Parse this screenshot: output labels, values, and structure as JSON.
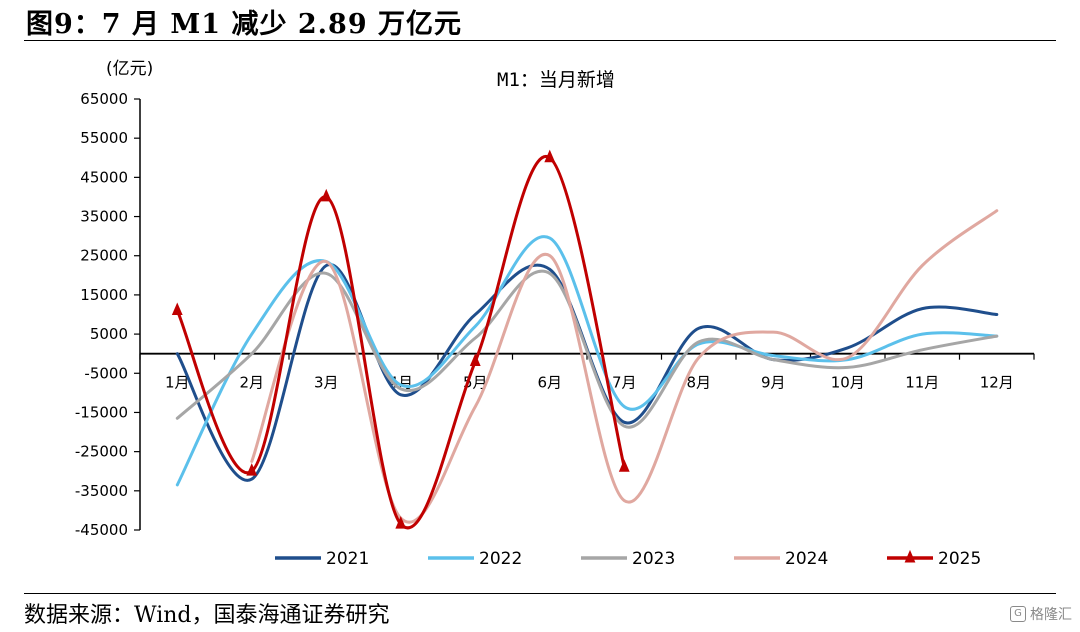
{
  "figure_title": "图9：7 月 M1 减少 2.89 万亿元",
  "source": "数据来源：Wind，国泰海通证券研究",
  "watermark": "格隆汇",
  "watermark_logo": "G",
  "chart_data": {
    "type": "line",
    "title": "M1：当月新增",
    "ylabel": "(亿元)",
    "ylim": [
      -45000,
      65000
    ],
    "yticks": [
      65000,
      55000,
      45000,
      35000,
      25000,
      15000,
      5000,
      -5000,
      -15000,
      -25000,
      -35000,
      -45000
    ],
    "ytick_labels": [
      "65000",
      "55000",
      "45000",
      "35000",
      "25000",
      "15000",
      "5000",
      "-5000",
      "-15000",
      "-25000",
      "-35000",
      "-45000"
    ],
    "categories": [
      "1月",
      "2月",
      "3月",
      "4月",
      "5月",
      "6月",
      "7月",
      "8月",
      "9月",
      "10月",
      "11月",
      "12月"
    ],
    "legend_position": "bottom",
    "grid": false,
    "series": [
      {
        "name": "2021",
        "color": "#1f4e8c",
        "marker": "none",
        "values": [
          0,
          -32000,
          22500,
          -10500,
          10000,
          21500,
          -17500,
          6500,
          -1500,
          1500,
          11500,
          10000
        ]
      },
      {
        "name": "2022",
        "color": "#5bc0eb",
        "marker": "none",
        "values": [
          -33500,
          5000,
          23500,
          -8000,
          7000,
          29500,
          -13500,
          2500,
          -500,
          -1500,
          5000,
          4500
        ]
      },
      {
        "name": "2023",
        "color": "#a6a6a6",
        "marker": "none",
        "values": [
          -16500,
          0,
          20500,
          -9000,
          4000,
          20500,
          -18500,
          3000,
          -1500,
          -3500,
          1000,
          4500
        ]
      },
      {
        "name": "2024",
        "color": "#e0a8a0",
        "marker": "none",
        "values": [
          null,
          -27500,
          23500,
          -42000,
          -13500,
          25000,
          -37500,
          -1000,
          5500,
          -1000,
          22500,
          36500
        ]
      },
      {
        "name": "2025",
        "color": "#c00000",
        "marker": "triangle",
        "values": [
          11000,
          -30000,
          40000,
          -43500,
          -2000,
          50000,
          -29000,
          null,
          null,
          null,
          null,
          null
        ]
      }
    ]
  }
}
